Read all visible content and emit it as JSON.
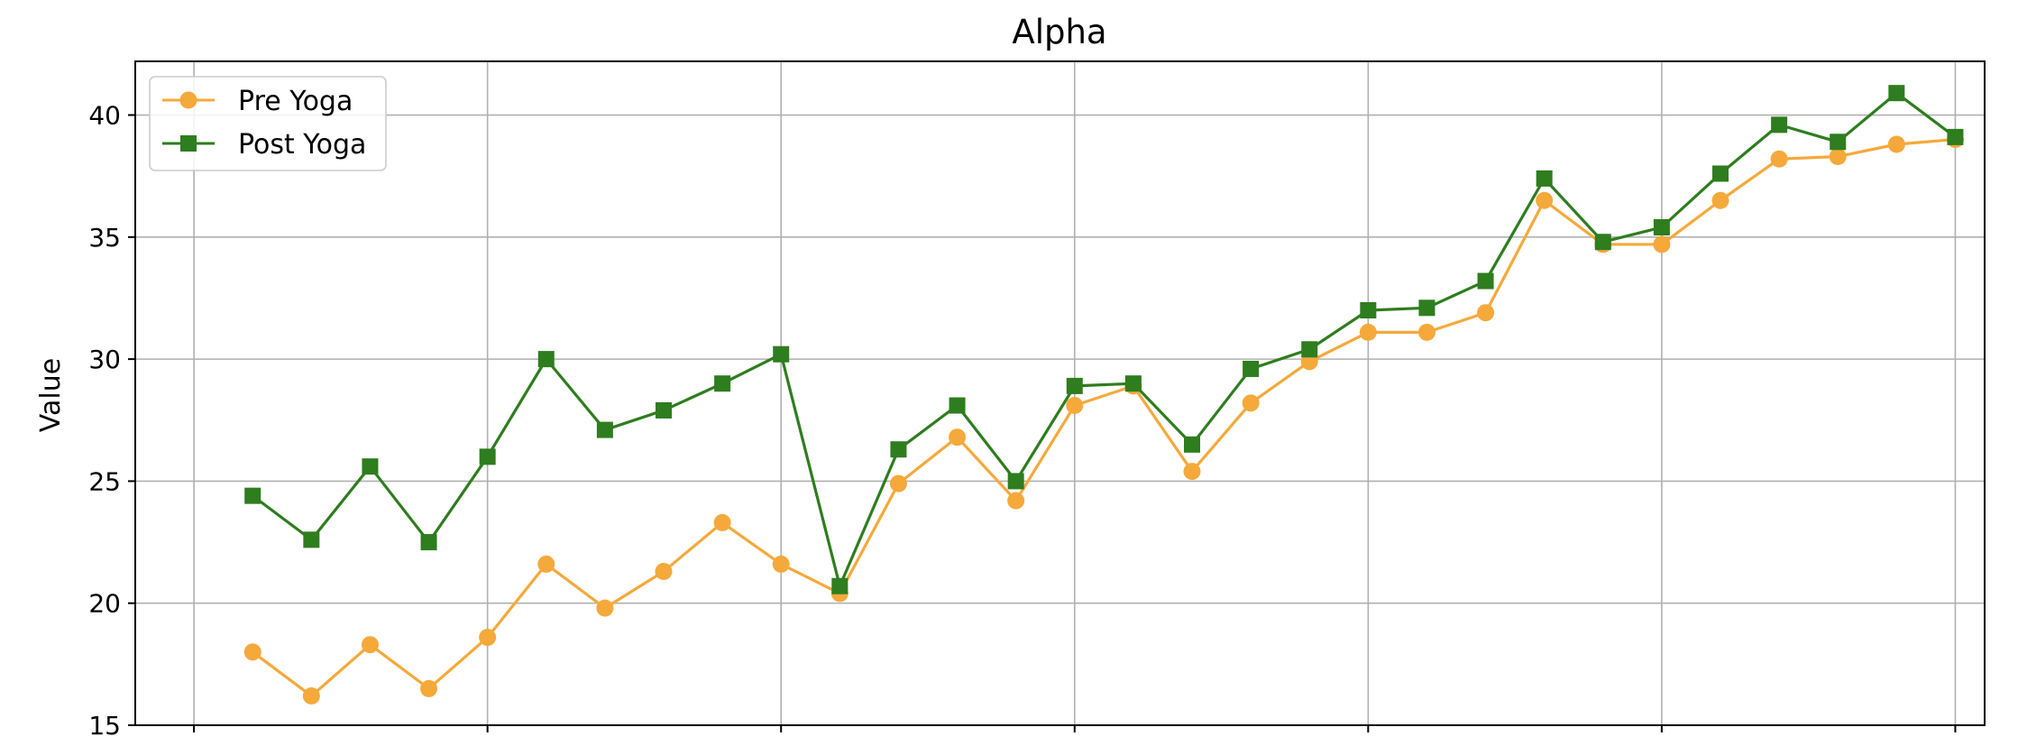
{
  "chart_data": {
    "type": "line",
    "title": "Alpha",
    "xlabel": "",
    "ylabel": "Value",
    "ylim": [
      15,
      42.2
    ],
    "yticks": [
      15,
      20,
      25,
      30,
      35,
      40
    ],
    "xlim": [
      -1,
      30.5
    ],
    "xticks": [
      0,
      5,
      10,
      15,
      20,
      25,
      30
    ],
    "grid": true,
    "legend_position": "upper-left",
    "x": [
      1,
      2,
      3,
      4,
      5,
      6,
      7,
      8,
      9,
      10,
      11,
      12,
      13,
      14,
      15,
      16,
      17,
      18,
      19,
      20,
      21,
      22,
      23,
      24,
      25,
      26,
      27,
      28,
      29,
      30
    ],
    "series": [
      {
        "name": "Pre Yoga",
        "color": "#f5a93b",
        "marker": "circle",
        "values": [
          18.0,
          16.2,
          18.3,
          16.5,
          18.6,
          21.6,
          19.8,
          21.3,
          23.3,
          21.6,
          20.4,
          24.9,
          26.8,
          24.2,
          28.1,
          28.9,
          25.4,
          28.2,
          29.9,
          31.1,
          31.1,
          31.9,
          36.5,
          34.7,
          34.7,
          36.5,
          38.2,
          38.3,
          38.8,
          39.0
        ]
      },
      {
        "name": "Post Yoga",
        "color": "#2e7d1e",
        "marker": "square",
        "values": [
          24.4,
          22.6,
          25.6,
          22.5,
          26.0,
          30.0,
          27.1,
          27.9,
          29.0,
          30.2,
          20.7,
          26.3,
          28.1,
          25.0,
          28.9,
          29.0,
          26.5,
          29.6,
          30.4,
          32.0,
          32.1,
          33.2,
          37.4,
          34.8,
          35.4,
          37.6,
          39.6,
          38.9,
          40.9,
          39.1
        ]
      }
    ]
  }
}
